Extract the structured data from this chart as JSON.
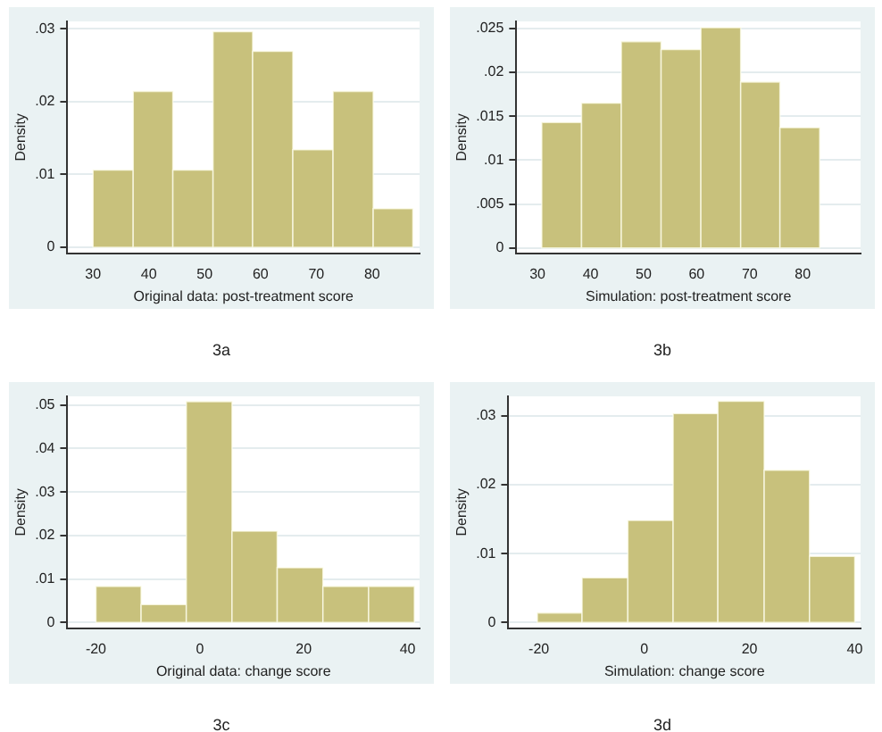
{
  "chart_data": [
    {
      "type": "histogram",
      "xlabel": "Original data: post-treatment score",
      "ylabel": "Density",
      "color": "#c8c17c",
      "grid": "y",
      "annotations": [
        "3a"
      ],
      "bins": [
        30,
        37.2,
        44.3,
        51.5,
        58.6,
        65.8,
        73,
        80.2,
        87.3
      ],
      "values": [
        0.0106,
        0.0214,
        0.0106,
        0.0296,
        0.0269,
        0.0134,
        0.0214,
        0.0053
      ],
      "xlim": [
        25.4,
        88.5
      ],
      "ylim": [
        -0.0008,
        0.031
      ],
      "xticks": [
        30,
        40,
        50,
        60,
        70,
        80
      ],
      "yticks": [
        {
          "value": 0,
          "label": "0"
        },
        {
          "value": 0.01,
          "label": ".01"
        },
        {
          "value": 0.02,
          "label": ".02"
        },
        {
          "value": 0.03,
          "label": ".03"
        }
      ]
    },
    {
      "type": "histogram",
      "xlabel": "Simulation: post-treatment score",
      "ylabel": "Density",
      "color": "#c8c17c",
      "grid": "y",
      "annotations": [
        "3b"
      ],
      "bins": [
        30.8,
        38.3,
        45.8,
        53.3,
        60.8,
        68.3,
        75.7,
        83.2
      ],
      "values": [
        0.0143,
        0.0165,
        0.0235,
        0.0226,
        0.0251,
        0.0189,
        0.0137
      ],
      "xlim": [
        26,
        90.9
      ],
      "ylim": [
        -0.0006,
        0.0258
      ],
      "xticks": [
        30,
        40,
        50,
        60,
        70,
        80
      ],
      "yticks": [
        {
          "value": 0,
          "label": "0"
        },
        {
          "value": 0.005,
          "label": ".005"
        },
        {
          "value": 0.01,
          "label": ".01"
        },
        {
          "value": 0.015,
          "label": ".015"
        },
        {
          "value": 0.02,
          "label": ".02"
        },
        {
          "value": 0.025,
          "label": ".025"
        }
      ]
    },
    {
      "type": "histogram",
      "xlabel": "Original data: change score",
      "ylabel": "Density",
      "color": "#c8c17c",
      "grid": "y",
      "annotations": [
        "3c"
      ],
      "bins": [
        -20,
        -11.3,
        -2.6,
        6.2,
        14.9,
        23.7,
        32.5,
        41.3
      ],
      "values": [
        0.0083,
        0.0041,
        0.0508,
        0.021,
        0.0126,
        0.0083,
        0.0083
      ],
      "xlim": [
        -25.5,
        42.3
      ],
      "ylim": [
        -0.0013,
        0.052
      ],
      "xticks": [
        -20,
        0,
        20,
        40
      ],
      "yticks": [
        {
          "value": 0,
          "label": "0"
        },
        {
          "value": 0.01,
          "label": ".01"
        },
        {
          "value": 0.02,
          "label": ".02"
        },
        {
          "value": 0.03,
          "label": ".03"
        },
        {
          "value": 0.04,
          "label": ".04"
        },
        {
          "value": 0.05,
          "label": ".05"
        }
      ]
    },
    {
      "type": "histogram",
      "xlabel": "Simulation: change score",
      "ylabel": "Density",
      "color": "#c8c17c",
      "grid": "y",
      "annotations": [
        "3d"
      ],
      "bins": [
        -20.3,
        -11.8,
        -3.1,
        5.5,
        14,
        22.8,
        31.4,
        40
      ],
      "values": [
        0.0014,
        0.0065,
        0.0148,
        0.0303,
        0.0321,
        0.0221,
        0.0096
      ],
      "xlim": [
        -25.8,
        41.1
      ],
      "ylim": [
        -0.0008,
        0.0328
      ],
      "xticks": [
        -20,
        0,
        20,
        40
      ],
      "yticks": [
        {
          "value": 0,
          "label": "0"
        },
        {
          "value": 0.01,
          "label": ".01"
        },
        {
          "value": 0.02,
          "label": ".02"
        },
        {
          "value": 0.03,
          "label": ".03"
        }
      ]
    }
  ]
}
